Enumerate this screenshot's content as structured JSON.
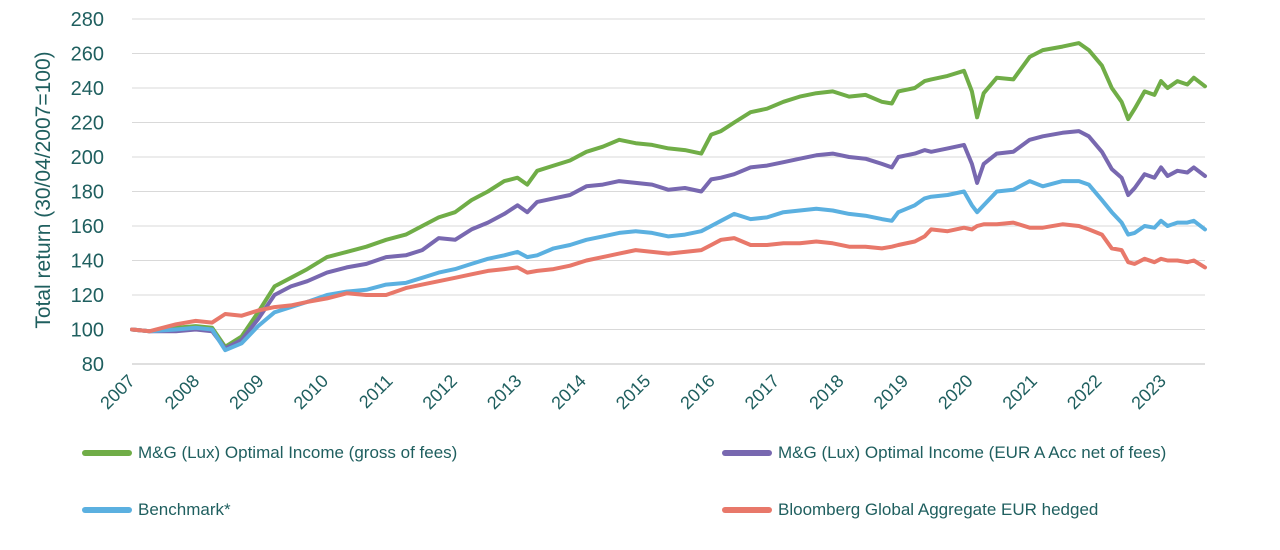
{
  "chart_data": {
    "type": "line",
    "title": "",
    "xlabel": "",
    "ylabel": "Total return (30/04/2007=100)",
    "ylim": [
      80,
      280
    ],
    "yticks": [
      80,
      100,
      120,
      140,
      160,
      180,
      200,
      220,
      240,
      260,
      280
    ],
    "xlim": [
      2007.33,
      2023.67
    ],
    "xticks": [
      2007,
      2008,
      2009,
      2010,
      2011,
      2012,
      2013,
      2014,
      2015,
      2016,
      2017,
      2018,
      2019,
      2020,
      2021,
      2022,
      2023
    ],
    "grid": true,
    "legend_position": "bottom",
    "series": [
      {
        "name": "M&G (Lux) Optimal Income (gross of fees)",
        "color": "#70ad47",
        "x": [
          2007.33,
          2007.6,
          2008.0,
          2008.3,
          2008.55,
          2008.75,
          2009.0,
          2009.25,
          2009.5,
          2009.75,
          2010.0,
          2010.3,
          2010.6,
          2010.9,
          2011.2,
          2011.5,
          2011.75,
          2012.0,
          2012.25,
          2012.5,
          2012.75,
          2013.0,
          2013.2,
          2013.35,
          2013.5,
          2013.75,
          2014.0,
          2014.25,
          2014.5,
          2014.75,
          2015.0,
          2015.25,
          2015.5,
          2015.75,
          2016.0,
          2016.15,
          2016.3,
          2016.5,
          2016.75,
          2017.0,
          2017.25,
          2017.5,
          2017.75,
          2018.0,
          2018.25,
          2018.5,
          2018.75,
          2018.9,
          2019.0,
          2019.25,
          2019.4,
          2019.5,
          2019.75,
          2020.0,
          2020.12,
          2020.2,
          2020.3,
          2020.5,
          2020.75,
          2021.0,
          2021.2,
          2021.5,
          2021.75,
          2021.9,
          2022.1,
          2022.25,
          2022.4,
          2022.5,
          2022.6,
          2022.75,
          2022.9,
          2023.0,
          2023.1,
          2023.25,
          2023.4,
          2023.5,
          2023.67
        ],
        "values": [
          100,
          99,
          101,
          102,
          101,
          90,
          96,
          110,
          125,
          130,
          135,
          142,
          145,
          148,
          152,
          155,
          160,
          165,
          168,
          175,
          180,
          186,
          188,
          184,
          192,
          195,
          198,
          203,
          206,
          210,
          208,
          207,
          205,
          204,
          202,
          213,
          215,
          220,
          226,
          228,
          232,
          235,
          237,
          238,
          235,
          236,
          232,
          231,
          238,
          240,
          244,
          245,
          247,
          250,
          238,
          223,
          237,
          246,
          245,
          258,
          262,
          264,
          266,
          262,
          253,
          240,
          232,
          222,
          228,
          238,
          236,
          244,
          240,
          244,
          242,
          246,
          241
        ]
      },
      {
        "name": "M&G (Lux) Optimal Income (EUR A Acc net of fees)",
        "color": "#7868b0",
        "x": [
          2007.33,
          2007.6,
          2008.0,
          2008.3,
          2008.55,
          2008.75,
          2009.0,
          2009.25,
          2009.5,
          2009.75,
          2010.0,
          2010.3,
          2010.6,
          2010.9,
          2011.2,
          2011.5,
          2011.75,
          2012.0,
          2012.25,
          2012.5,
          2012.75,
          2013.0,
          2013.2,
          2013.35,
          2013.5,
          2013.75,
          2014.0,
          2014.25,
          2014.5,
          2014.75,
          2015.0,
          2015.25,
          2015.5,
          2015.75,
          2016.0,
          2016.15,
          2016.3,
          2016.5,
          2016.75,
          2017.0,
          2017.25,
          2017.5,
          2017.75,
          2018.0,
          2018.25,
          2018.5,
          2018.75,
          2018.9,
          2019.0,
          2019.25,
          2019.4,
          2019.5,
          2019.75,
          2020.0,
          2020.12,
          2020.2,
          2020.3,
          2020.5,
          2020.75,
          2021.0,
          2021.2,
          2021.5,
          2021.75,
          2021.9,
          2022.1,
          2022.25,
          2022.4,
          2022.5,
          2022.6,
          2022.75,
          2022.9,
          2023.0,
          2023.1,
          2023.25,
          2023.4,
          2023.5,
          2023.67
        ],
        "values": [
          100,
          99,
          99,
          100,
          99,
          89,
          94,
          106,
          120,
          125,
          128,
          133,
          136,
          138,
          142,
          143,
          146,
          153,
          152,
          158,
          162,
          167,
          172,
          168,
          174,
          176,
          178,
          183,
          184,
          186,
          185,
          184,
          181,
          182,
          180,
          187,
          188,
          190,
          194,
          195,
          197,
          199,
          201,
          202,
          200,
          199,
          196,
          194,
          200,
          202,
          204,
          203,
          205,
          207,
          196,
          185,
          196,
          202,
          203,
          210,
          212,
          214,
          215,
          212,
          203,
          193,
          188,
          178,
          182,
          190,
          188,
          194,
          189,
          192,
          191,
          194,
          189
        ]
      },
      {
        "name": "Benchmark*",
        "color": "#5bb0e0",
        "x": [
          2007.33,
          2007.6,
          2008.0,
          2008.3,
          2008.55,
          2008.75,
          2009.0,
          2009.25,
          2009.5,
          2009.75,
          2010.0,
          2010.3,
          2010.6,
          2010.9,
          2011.2,
          2011.5,
          2011.75,
          2012.0,
          2012.25,
          2012.5,
          2012.75,
          2013.0,
          2013.2,
          2013.35,
          2013.5,
          2013.75,
          2014.0,
          2014.25,
          2014.5,
          2014.75,
          2015.0,
          2015.25,
          2015.5,
          2015.75,
          2016.0,
          2016.15,
          2016.3,
          2016.5,
          2016.75,
          2017.0,
          2017.25,
          2017.5,
          2017.75,
          2018.0,
          2018.25,
          2018.5,
          2018.75,
          2018.9,
          2019.0,
          2019.25,
          2019.4,
          2019.5,
          2019.75,
          2020.0,
          2020.12,
          2020.2,
          2020.3,
          2020.5,
          2020.75,
          2021.0,
          2021.2,
          2021.5,
          2021.75,
          2021.9,
          2022.1,
          2022.25,
          2022.4,
          2022.5,
          2022.6,
          2022.75,
          2022.9,
          2023.0,
          2023.1,
          2023.25,
          2023.4,
          2023.5,
          2023.67
        ],
        "values": [
          100,
          99,
          100,
          101,
          100,
          88,
          92,
          102,
          110,
          113,
          116,
          120,
          122,
          123,
          126,
          127,
          130,
          133,
          135,
          138,
          141,
          143,
          145,
          142,
          143,
          147,
          149,
          152,
          154,
          156,
          157,
          156,
          154,
          155,
          157,
          160,
          163,
          167,
          164,
          165,
          168,
          169,
          170,
          169,
          167,
          166,
          164,
          163,
          168,
          172,
          176,
          177,
          178,
          180,
          172,
          168,
          172,
          180,
          181,
          186,
          183,
          186,
          186,
          184,
          175,
          168,
          162,
          155,
          156,
          160,
          159,
          163,
          160,
          162,
          162,
          163,
          158
        ]
      },
      {
        "name": "Bloomberg Global Aggregate EUR hedged",
        "color": "#e8786a",
        "x": [
          2007.33,
          2007.6,
          2008.0,
          2008.3,
          2008.55,
          2008.75,
          2009.0,
          2009.25,
          2009.5,
          2009.75,
          2010.0,
          2010.3,
          2010.6,
          2010.9,
          2011.2,
          2011.5,
          2011.75,
          2012.0,
          2012.25,
          2012.5,
          2012.75,
          2013.0,
          2013.2,
          2013.35,
          2013.5,
          2013.75,
          2014.0,
          2014.25,
          2014.5,
          2014.75,
          2015.0,
          2015.25,
          2015.5,
          2015.75,
          2016.0,
          2016.15,
          2016.3,
          2016.5,
          2016.75,
          2017.0,
          2017.25,
          2017.5,
          2017.75,
          2018.0,
          2018.25,
          2018.5,
          2018.75,
          2018.9,
          2019.0,
          2019.25,
          2019.4,
          2019.5,
          2019.75,
          2020.0,
          2020.12,
          2020.2,
          2020.3,
          2020.5,
          2020.75,
          2021.0,
          2021.2,
          2021.5,
          2021.75,
          2021.9,
          2022.1,
          2022.25,
          2022.4,
          2022.5,
          2022.6,
          2022.75,
          2022.9,
          2023.0,
          2023.1,
          2023.25,
          2023.4,
          2023.5,
          2023.67
        ],
        "values": [
          100,
          99,
          103,
          105,
          104,
          109,
          108,
          111,
          113,
          114,
          116,
          118,
          121,
          120,
          120,
          124,
          126,
          128,
          130,
          132,
          134,
          135,
          136,
          133,
          134,
          135,
          137,
          140,
          142,
          144,
          146,
          145,
          144,
          145,
          146,
          149,
          152,
          153,
          149,
          149,
          150,
          150,
          151,
          150,
          148,
          148,
          147,
          148,
          149,
          151,
          154,
          158,
          157,
          159,
          158,
          160,
          161,
          161,
          162,
          159,
          159,
          161,
          160,
          158,
          155,
          147,
          146,
          139,
          138,
          141,
          139,
          141,
          140,
          140,
          139,
          140,
          136
        ]
      }
    ]
  }
}
